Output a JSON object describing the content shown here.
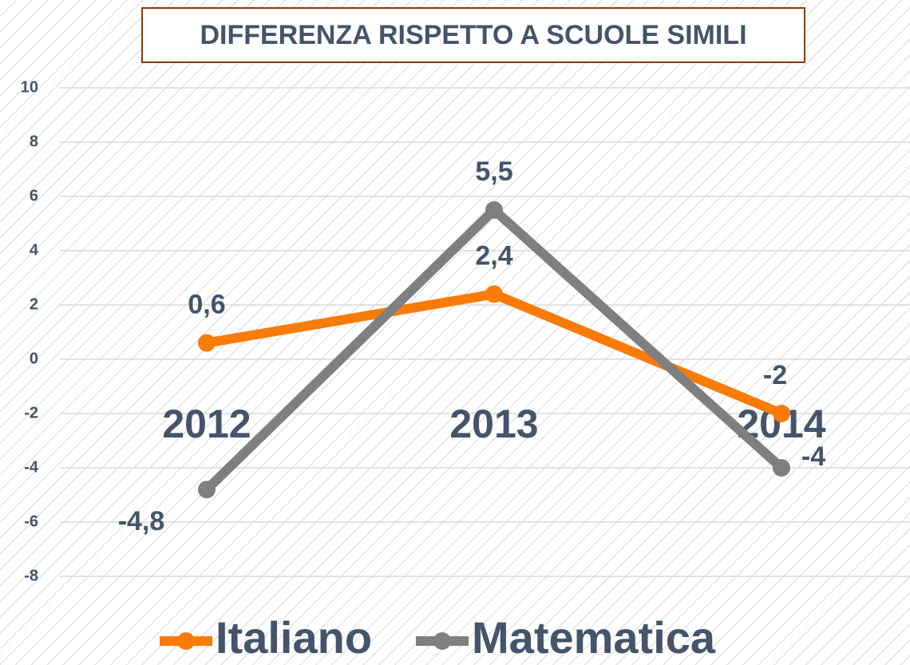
{
  "chart_data": {
    "type": "line",
    "title": "DIFFERENZA RISPETTO A SCUOLE SIMILI",
    "categories": [
      "2012",
      "2013",
      "2014"
    ],
    "series": [
      {
        "name": "Italiano",
        "color": "#fb7b09",
        "values": [
          0.6,
          2.4,
          -2
        ],
        "value_labels": [
          "0,6",
          "2,4",
          "-2"
        ]
      },
      {
        "name": "Matematica",
        "color": "#7f7f7f",
        "values": [
          -4.8,
          5.5,
          -4
        ],
        "value_labels": [
          "-4,8",
          "5,5",
          "-4"
        ]
      }
    ],
    "ylim": [
      -8,
      10
    ],
    "yticks": [
      -8,
      -6,
      -4,
      -2,
      0,
      2,
      4,
      6,
      8,
      10
    ],
    "grid": true,
    "legend": "bottom"
  }
}
